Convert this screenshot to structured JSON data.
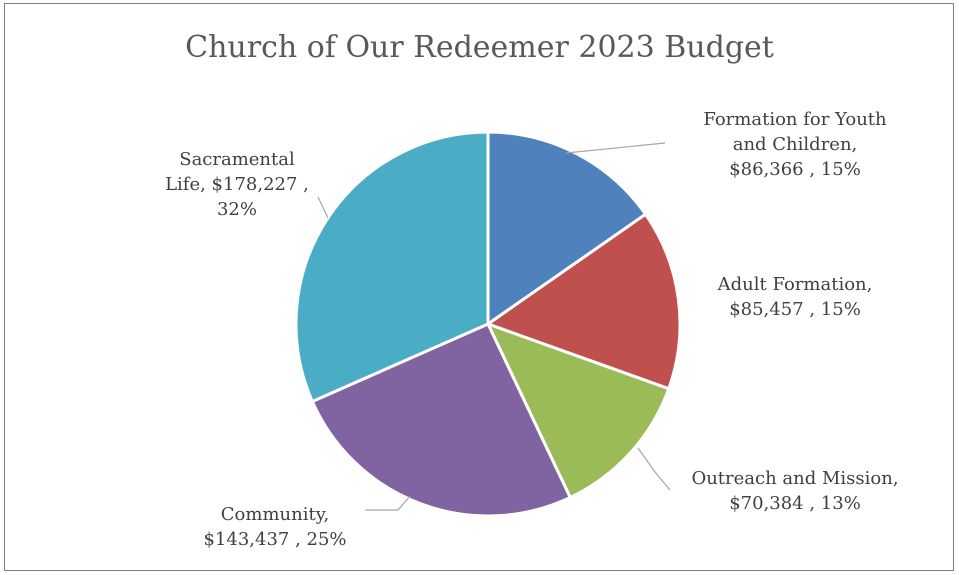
{
  "chart_data": {
    "type": "pie",
    "title": "Church of Our Redeemer 2023 Budget",
    "slices": [
      {
        "name": "Formation for Youth and Children",
        "value": 86366,
        "percent": "15%",
        "color": "#4f81bd",
        "label_lines": [
          "Formation for Youth",
          "and Children,",
          "$86,366 , 15%"
        ]
      },
      {
        "name": "Adult Formation",
        "value": 85457,
        "percent": "15%",
        "color": "#c0504d",
        "label_lines": [
          "Adult Formation,",
          "$85,457 , 15%"
        ]
      },
      {
        "name": "Outreach and Mission",
        "value": 70384,
        "percent": "13%",
        "color": "#9bbb59",
        "label_lines": [
          "Outreach and Mission,",
          "$70,384 , 13%"
        ]
      },
      {
        "name": "Community",
        "value": 143437,
        "percent": "25%",
        "color": "#8064a2",
        "label_lines": [
          "Community,",
          "$143,437 , 25%"
        ]
      },
      {
        "name": "Sacramental Life",
        "value": 178227,
        "percent": "32%",
        "color": "#4bacc6",
        "label_lines": [
          "Sacramental",
          "Life,  $178,227 ,",
          "32%"
        ]
      }
    ],
    "legend": "none",
    "leader_line_color": "#a6a6a6"
  }
}
